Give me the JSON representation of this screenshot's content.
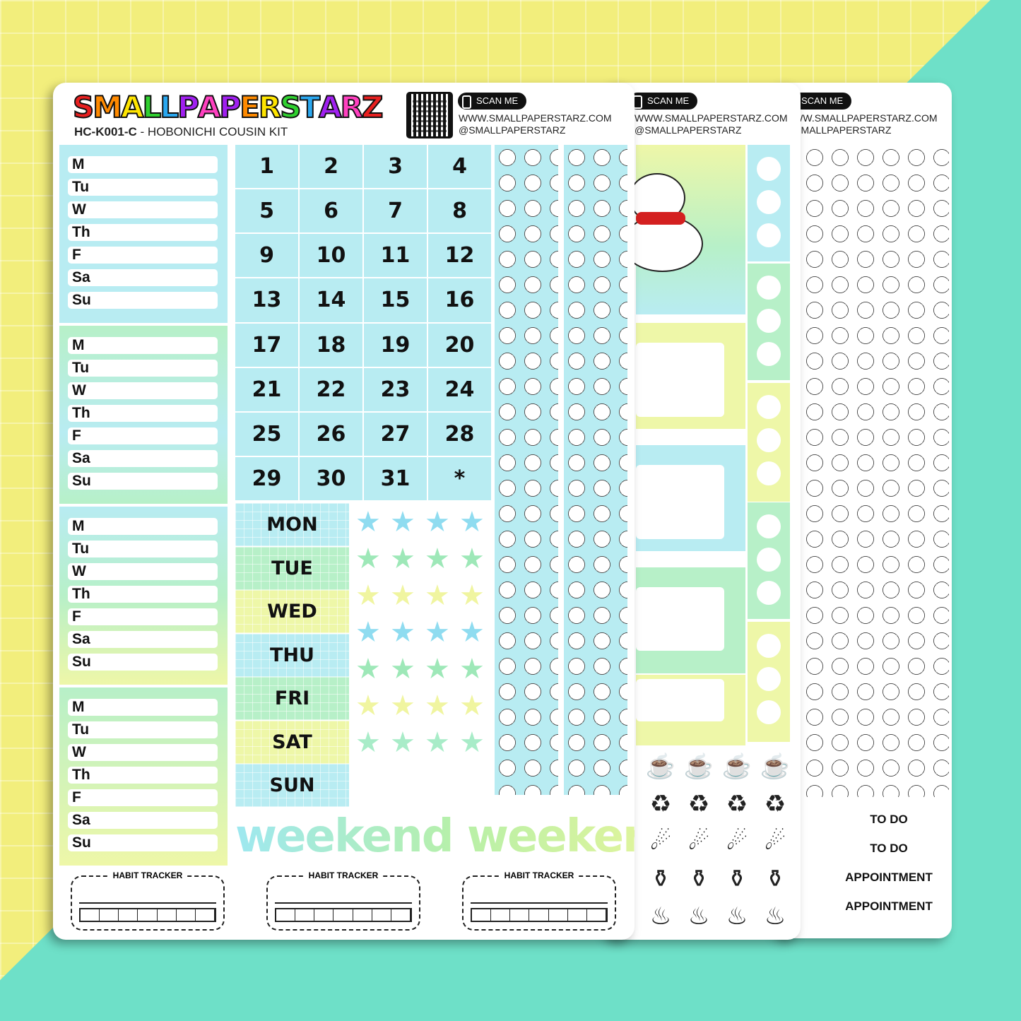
{
  "brand": {
    "logo_text": "SMALLPAPERSTARZ",
    "logo_colors": [
      "#e82020",
      "#ff8a00",
      "#ffe500",
      "#30d030",
      "#2aa8f0",
      "#a020f0",
      "#ff40c0",
      "#a020f0",
      "#ff8a00",
      "#ffe500",
      "#30d030",
      "#2aa8f0",
      "#a020f0",
      "#ff40c0",
      "#e82020"
    ],
    "sku": "HC-K001-C",
    "kit_name": "- HOBONICHI COUSIN KIT",
    "scan_label": "SCAN ME",
    "website": "WWW.SMALLPAPERSTARZ.COM",
    "handle": "@SMALLPAPERSTARZ"
  },
  "colors": {
    "blue": "#b8ecf2",
    "green": "#b7f0c8",
    "yellow": "#eef7a8",
    "background": "#f2ee7c",
    "teal": "#6ee0c8"
  },
  "day_labels": [
    "M",
    "Tu",
    "W",
    "Th",
    "F",
    "Sa",
    "Su"
  ],
  "dates": [
    "1",
    "2",
    "3",
    "4",
    "5",
    "6",
    "7",
    "8",
    "9",
    "10",
    "11",
    "12",
    "13",
    "14",
    "15",
    "16",
    "17",
    "18",
    "19",
    "20",
    "21",
    "22",
    "23",
    "24",
    "25",
    "26",
    "27",
    "28",
    "29",
    "30",
    "31",
    "*"
  ],
  "weekdays": [
    "MON",
    "TUE",
    "WED",
    "THU",
    "FRI",
    "SAT",
    "SUN"
  ],
  "weekend_text": "weekend weekend",
  "habit_tracker_label": "HABIT TRACKER",
  "sheet2": {
    "scan_label": "SCAN ME",
    "website": "WWW.SMALLPAPERSTARZ.COM",
    "handle": "@SMALLPAPERSTARZ",
    "icons": [
      "coffee-cup-icon",
      "trash-can-icon",
      "shooting-star-icon",
      "bucket-broom-icon",
      "noodle-bowl-icon"
    ]
  },
  "sheet3": {
    "scan_label": "SCAN ME",
    "website": "WWW.SMALLPAPERSTARZ.COM",
    "handle": "@SMALLPAPERSTARZ",
    "labels": [
      "TO DO",
      "TO DO",
      "APPOINTMENT",
      "APPOINTMENT"
    ]
  }
}
